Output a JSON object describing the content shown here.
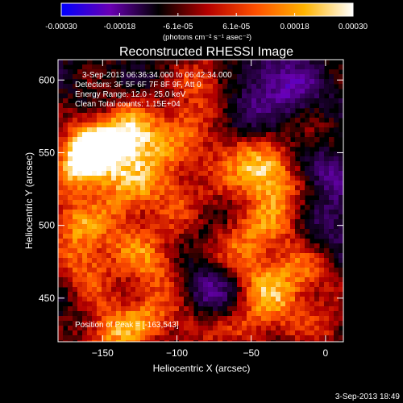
{
  "colorbar": {
    "tick_labels": [
      "-0.00030",
      "-0.00018",
      "-6.1e-05",
      "6.1e-05",
      "0.00018",
      "0.00030"
    ],
    "unit_label": "(photons cm⁻² s⁻¹ asec⁻²)",
    "range": [
      -0.0003,
      0.0003
    ],
    "colors": [
      "#0000ff",
      "#6a00b4",
      "#000000",
      "#b40000",
      "#ff5000",
      "#ffb400",
      "#ffffff"
    ]
  },
  "chart_data": {
    "type": "heatmap",
    "title": "Reconstructed RHESSI Image",
    "xlabel": "Heliocentric X (arcsec)",
    "ylabel": "Heliocentric Y (arcsec)",
    "xlim": [
      -180,
      12
    ],
    "ylim": [
      420,
      614
    ],
    "x_ticks": [
      -150,
      -100,
      -50,
      0
    ],
    "y_ticks": [
      450,
      500,
      550,
      600
    ],
    "annotations": [
      "3-Sep-2013 06:36:34.000 to 06:42:34.000",
      "Detectors: 3F 5F 6F 7F 8F 9F, Att 0",
      "Energy Range: 12.0 - 25.0 keV",
      "Clean    Total counts: 1.15E+04"
    ],
    "peak_label": "Position of Peak = [-163,543]",
    "peak": [
      -163,
      543
    ],
    "sources": [
      {
        "x": -163,
        "y": 543,
        "intensity": 1.0
      },
      {
        "x": -152,
        "y": 558,
        "intensity": 0.7
      },
      {
        "x": -130,
        "y": 562,
        "intensity": 0.75
      },
      {
        "x": -120,
        "y": 542,
        "intensity": 0.5
      },
      {
        "x": -140,
        "y": 520,
        "intensity": 0.45
      },
      {
        "x": -100,
        "y": 520,
        "intensity": 0.5
      },
      {
        "x": -95,
        "y": 570,
        "intensity": 0.55
      },
      {
        "x": -80,
        "y": 600,
        "intensity": 0.45
      },
      {
        "x": -65,
        "y": 548,
        "intensity": 0.55
      },
      {
        "x": -40,
        "y": 533,
        "intensity": 0.85
      },
      {
        "x": -30,
        "y": 505,
        "intensity": 0.5
      },
      {
        "x": -10,
        "y": 560,
        "intensity": 0.35
      },
      {
        "x": -170,
        "y": 500,
        "intensity": 0.6
      },
      {
        "x": -160,
        "y": 470,
        "intensity": 0.55
      },
      {
        "x": -130,
        "y": 490,
        "intensity": 0.5
      },
      {
        "x": -110,
        "y": 470,
        "intensity": 0.45
      },
      {
        "x": -120,
        "y": 440,
        "intensity": 0.5
      },
      {
        "x": -145,
        "y": 425,
        "intensity": 0.7
      },
      {
        "x": -60,
        "y": 490,
        "intensity": 0.45
      },
      {
        "x": -30,
        "y": 450,
        "intensity": 0.55
      },
      {
        "x": -45,
        "y": 470,
        "intensity": 0.45
      },
      {
        "x": -10,
        "y": 470,
        "intensity": 0.4
      },
      {
        "x": -90,
        "y": 430,
        "intensity": 0.4
      },
      {
        "x": -50,
        "y": 430,
        "intensity": 0.45
      },
      {
        "x": 0,
        "y": 430,
        "intensity": 0.35
      },
      {
        "x": -20,
        "y": 590,
        "intensity": -0.45
      },
      {
        "x": 0,
        "y": 540,
        "intensity": -0.5
      },
      {
        "x": -40,
        "y": 605,
        "intensity": -0.35
      },
      {
        "x": -80,
        "y": 455,
        "intensity": -0.5
      },
      {
        "x": 5,
        "y": 500,
        "intensity": -0.35
      },
      {
        "x": -60,
        "y": 575,
        "intensity": -0.3
      }
    ]
  },
  "timestamp": "3-Sep-2013 18:49"
}
